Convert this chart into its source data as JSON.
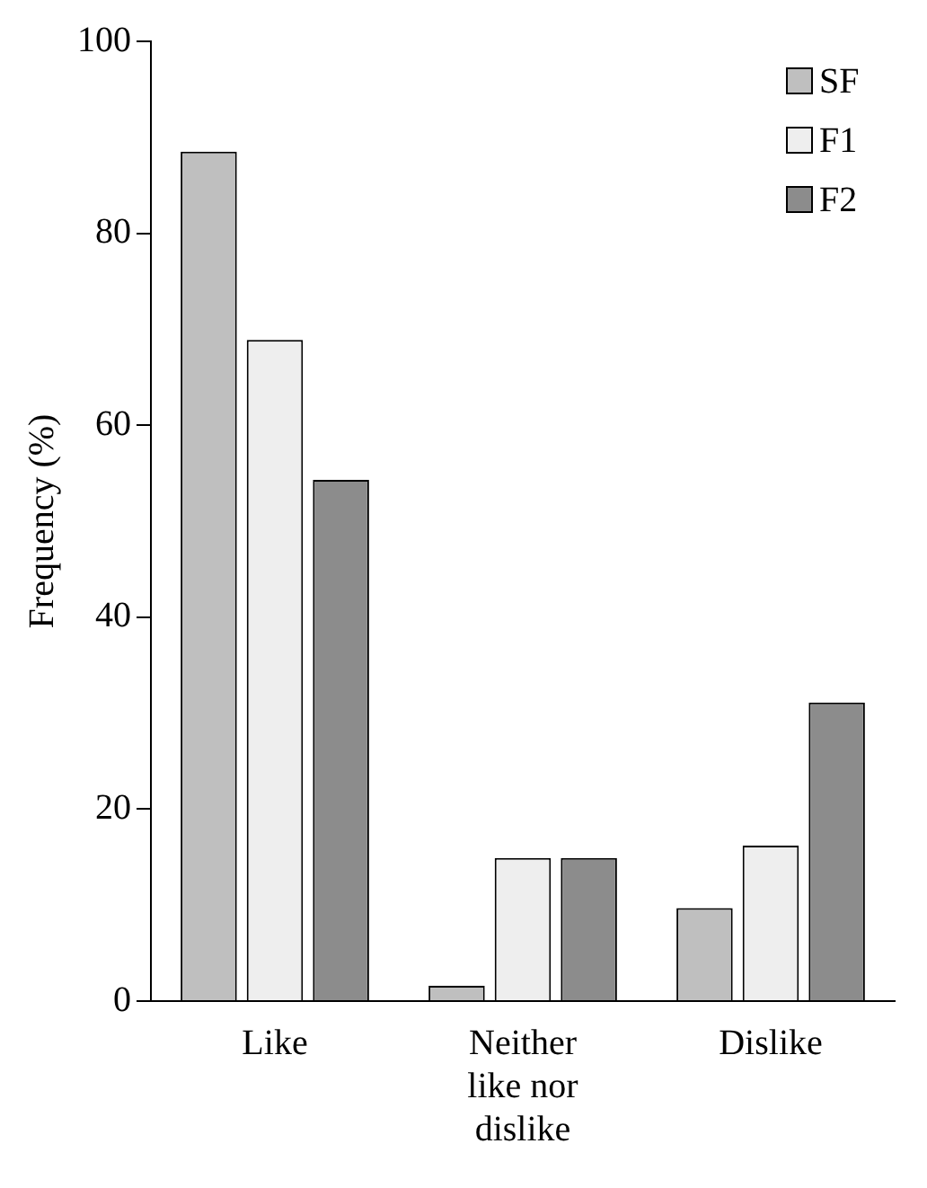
{
  "chart_data": {
    "type": "bar",
    "ylabel": "Frequency (%)",
    "categories": [
      "Like",
      "Neither like nor dislike",
      "Dislike"
    ],
    "series": [
      {
        "name": "SF",
        "color": "#bfbfbf",
        "values": [
          88.5,
          1.6,
          9.7
        ]
      },
      {
        "name": "F1",
        "color": "#eeeeee",
        "values": [
          68.9,
          14.9,
          16.2
        ]
      },
      {
        "name": "F2",
        "color": "#8c8c8c",
        "values": [
          54.3,
          14.9,
          31.1
        ]
      }
    ],
    "ylim": [
      0,
      100
    ],
    "yticks": [
      0,
      20,
      40,
      60,
      80,
      100
    ],
    "grid": false,
    "legend": "top right"
  }
}
